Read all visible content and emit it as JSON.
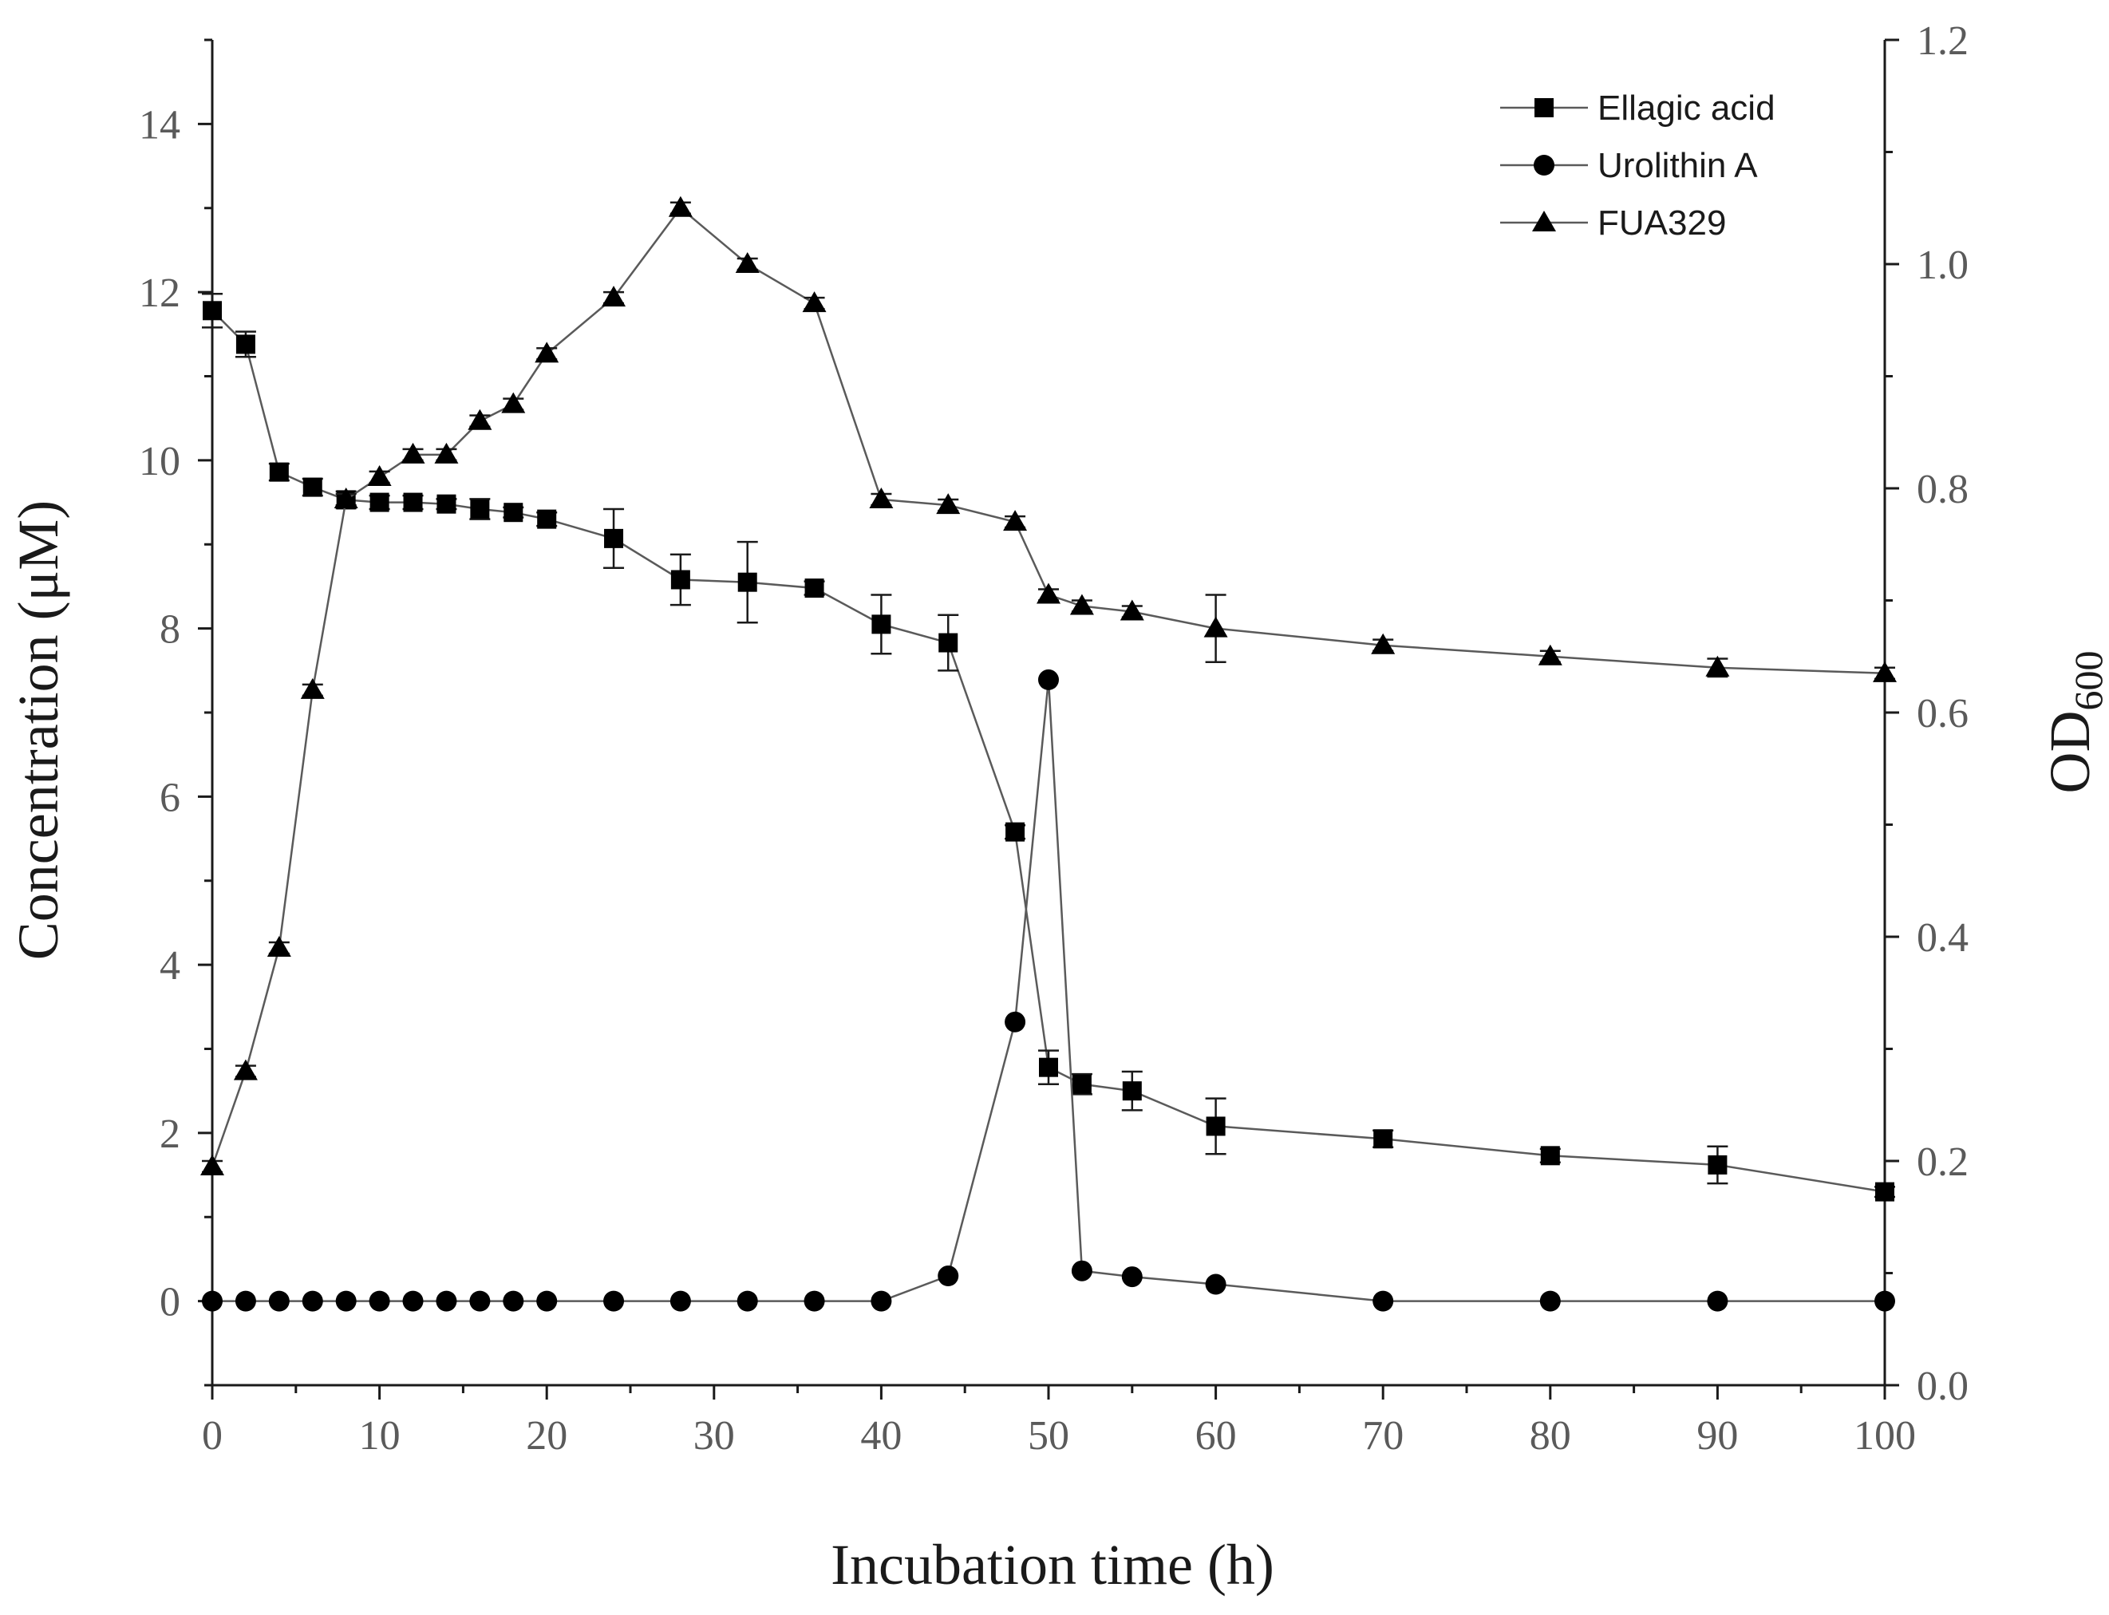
{
  "chart_data": {
    "type": "line",
    "xlabel": "Incubation time (h)",
    "ylabel": "Concentration (μM)",
    "y2label_main": "OD",
    "y2label_sub": "600",
    "xlim": [
      0,
      100
    ],
    "ylim": [
      -1,
      15
    ],
    "y2lim": [
      0,
      1.2
    ],
    "xticks": [
      0,
      10,
      20,
      30,
      40,
      50,
      60,
      70,
      80,
      90,
      100
    ],
    "yticks": [
      0,
      2,
      4,
      6,
      8,
      10,
      12,
      14
    ],
    "y2ticks": [
      "0.0",
      "0.2",
      "0.4",
      "0.6",
      "0.8",
      "1.0",
      "1.2"
    ],
    "legend_position": "top-right",
    "series": [
      {
        "name": "Ellagic acid",
        "marker": "square",
        "axis": "left",
        "x": [
          0,
          2,
          4,
          6,
          8,
          10,
          12,
          14,
          16,
          18,
          20,
          24,
          28,
          32,
          36,
          40,
          44,
          48,
          50,
          52,
          55,
          60,
          70,
          80,
          90,
          100
        ],
        "y": [
          11.78,
          11.38,
          9.86,
          9.68,
          9.53,
          9.5,
          9.5,
          9.48,
          9.42,
          9.38,
          9.3,
          9.07,
          8.58,
          8.55,
          8.48,
          8.05,
          7.83,
          5.58,
          2.78,
          2.58,
          2.5,
          2.08,
          1.93,
          1.73,
          1.62,
          1.3
        ],
        "err": [
          0.2,
          0.15,
          0.1,
          0.1,
          0.1,
          0.08,
          0.08,
          0.06,
          0.12,
          0.06,
          0.08,
          0.35,
          0.3,
          0.48,
          0.08,
          0.35,
          0.33,
          0.08,
          0.2,
          0.12,
          0.23,
          0.33,
          0.1,
          0.08,
          0.22,
          0.06
        ]
      },
      {
        "name": "Urolithin A",
        "marker": "circle",
        "axis": "left",
        "x": [
          0,
          2,
          4,
          6,
          8,
          10,
          12,
          14,
          16,
          18,
          20,
          24,
          28,
          32,
          36,
          40,
          44,
          48,
          50,
          52,
          55,
          60,
          70,
          80,
          90,
          100
        ],
        "y": [
          0,
          0,
          0,
          0,
          0,
          0,
          0,
          0,
          0,
          0,
          0,
          0,
          0,
          0,
          0,
          0,
          0.3,
          3.32,
          7.39,
          0.36,
          0.29,
          0.2,
          0,
          0,
          0,
          0
        ]
      },
      {
        "name": "FUA329",
        "marker": "triangle",
        "axis": "right",
        "x": [
          0,
          2,
          4,
          6,
          8,
          10,
          12,
          14,
          16,
          18,
          20,
          24,
          28,
          32,
          36,
          40,
          44,
          48,
          50,
          52,
          55,
          60,
          70,
          80,
          90,
          100
        ],
        "y": [
          0.195,
          0.28,
          0.39,
          0.62,
          0.79,
          0.81,
          0.83,
          0.83,
          0.86,
          0.875,
          0.92,
          0.97,
          1.05,
          1.0,
          0.965,
          0.79,
          0.785,
          0.77,
          0.705,
          0.695,
          0.69,
          0.675,
          0.66,
          0.65,
          0.64,
          0.635
        ],
        "err": [
          0.005,
          0.005,
          0.005,
          0.005,
          0.005,
          0.005,
          0.005,
          0.005,
          0.005,
          0.005,
          0.005,
          0.005,
          0.005,
          0.005,
          0.005,
          0.005,
          0.005,
          0.005,
          0.005,
          0.005,
          0.005,
          0.03,
          0.005,
          0.005,
          0.008,
          0.005
        ]
      }
    ]
  }
}
